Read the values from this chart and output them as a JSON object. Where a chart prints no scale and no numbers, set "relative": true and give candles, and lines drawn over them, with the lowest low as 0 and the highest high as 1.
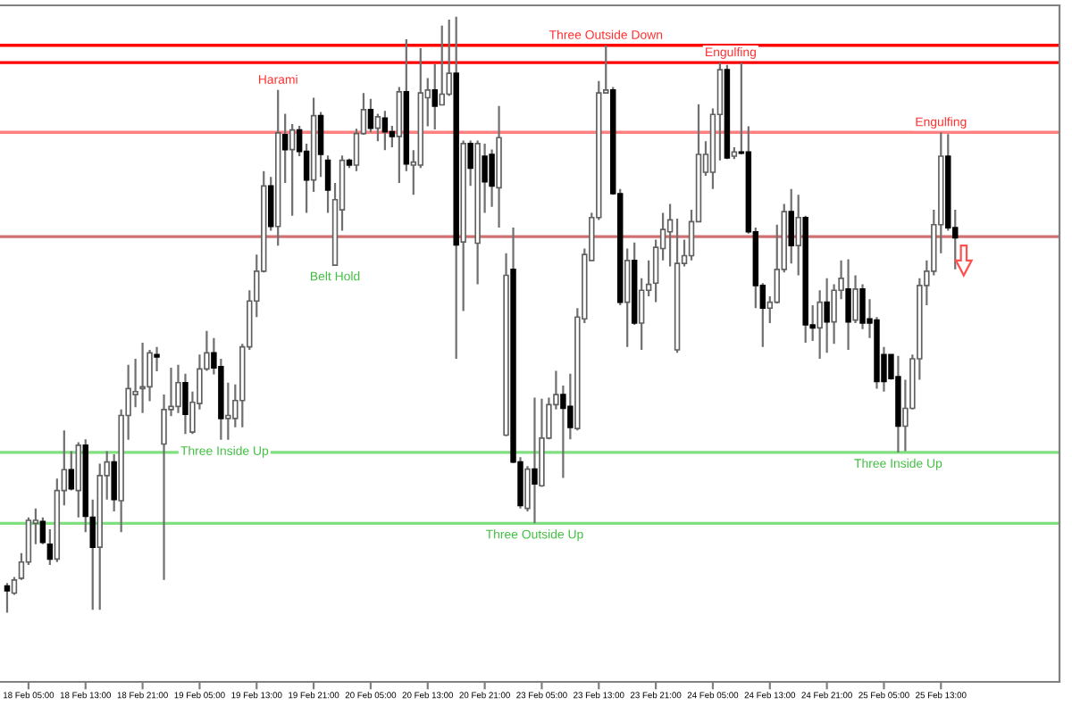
{
  "chart_data": {
    "type": "candlestick",
    "relative": true,
    "tick_labels": "x",
    "categories": [
      null,
      null,
      null,
      "18 Feb 05:00",
      null,
      null,
      null,
      null,
      null,
      null,
      null,
      "18 Feb 13:00",
      null,
      null,
      null,
      null,
      null,
      null,
      null,
      "18 Feb 21:00",
      null,
      null,
      null,
      null,
      null,
      null,
      null,
      "19 Feb 05:00",
      null,
      null,
      null,
      null,
      null,
      null,
      null,
      "19 Feb 13:00",
      null,
      null,
      null,
      null,
      null,
      null,
      null,
      "19 Feb 21:00",
      null,
      null,
      null,
      null,
      null,
      null,
      null,
      "20 Feb 05:00",
      null,
      null,
      null,
      null,
      null,
      null,
      null,
      "20 Feb 13:00",
      null,
      null,
      null,
      null,
      null,
      null,
      null,
      "20 Feb 21:00",
      null,
      null,
      null,
      null,
      null,
      null,
      null,
      "23 Feb 05:00",
      null,
      null,
      null,
      null,
      null,
      null,
      null,
      "23 Feb 13:00",
      null,
      null,
      null,
      null,
      null,
      null,
      null,
      "23 Feb 21:00",
      null,
      null,
      null,
      null,
      null,
      null,
      null,
      "24 Feb 05:00",
      null,
      null,
      null,
      null,
      null,
      null,
      null,
      "24 Feb 13:00",
      null,
      null,
      null,
      null,
      null,
      null,
      null,
      "24 Feb 21:00",
      null,
      null,
      null,
      null,
      null,
      null,
      null,
      "25 Feb 05:00",
      null,
      null,
      null,
      null,
      null,
      null,
      null,
      "25 Feb 13:00",
      null,
      null
    ],
    "ohlc": [
      [
        0.045,
        0.05,
        0,
        0.037
      ],
      [
        0.033,
        0.06,
        0.03,
        0.055
      ],
      [
        0.058,
        0.1,
        0.055,
        0.085
      ],
      [
        0.085,
        0.16,
        0.08,
        0.155
      ],
      [
        0.15,
        0.175,
        0.115,
        0.155
      ],
      [
        0.153,
        0.16,
        0.115,
        0.118
      ],
      [
        0.115,
        0.14,
        0.08,
        0.09
      ],
      [
        0.09,
        0.225,
        0.085,
        0.205
      ],
      [
        0.205,
        0.306,
        0.18,
        0.24
      ],
      [
        0.24,
        0.271,
        0.205,
        0.208
      ],
      [
        0.205,
        0.286,
        0.16,
        0.281
      ],
      [
        0.281,
        0.291,
        0.135,
        0.162
      ],
      [
        0.16,
        0.19,
        0.005,
        0.11
      ],
      [
        0.11,
        0.25,
        0.005,
        0.23
      ],
      [
        0.23,
        0.271,
        0.19,
        0.253
      ],
      [
        0.253,
        0.266,
        0.17,
        0.19
      ],
      [
        0.188,
        0.341,
        0.135,
        0.331
      ],
      [
        0.331,
        0.416,
        0.29,
        0.376
      ],
      [
        0.366,
        0.426,
        0.345,
        0.371
      ],
      [
        0.376,
        0.453,
        0.335,
        0.379
      ],
      [
        0.379,
        0.441,
        0.355,
        0.436
      ],
      [
        0.433,
        0.446,
        0.405,
        0.429
      ],
      [
        0.283,
        0.366,
        0.055,
        0.341
      ],
      [
        0.341,
        0.411,
        0.33,
        0.346
      ],
      [
        0.346,
        0.416,
        0.335,
        0.386
      ],
      [
        0.386,
        0.401,
        0.3,
        0.333
      ],
      [
        0.303,
        0.371,
        0.3,
        0.353
      ],
      [
        0.351,
        0.433,
        0.341,
        0.409
      ],
      [
        0.409,
        0.473,
        0.406,
        0.436
      ],
      [
        0.436,
        0.461,
        0.4,
        0.411
      ],
      [
        0.413,
        0.426,
        0.29,
        0.326
      ],
      [
        0.326,
        0.386,
        0.29,
        0.331
      ],
      [
        0.326,
        0.383,
        0.311,
        0.356
      ],
      [
        0.356,
        0.451,
        0.311,
        0.446
      ],
      [
        0.446,
        0.541,
        0.441,
        0.523
      ],
      [
        0.523,
        0.601,
        0.496,
        0.573
      ],
      [
        0.573,
        0.741,
        0.571,
        0.716
      ],
      [
        0.716,
        0.731,
        0.641,
        0.648
      ],
      [
        0.648,
        0.877,
        0.616,
        0.805
      ],
      [
        0.802,
        0.837,
        0.721,
        0.777
      ],
      [
        0.777,
        0.82,
        0.666,
        0.81
      ],
      [
        0.81,
        0.817,
        0.766,
        0.774
      ],
      [
        0.774,
        0.787,
        0.671,
        0.726
      ],
      [
        0.726,
        0.864,
        0.706,
        0.834
      ],
      [
        0.834,
        0.84,
        0.731,
        0.769
      ],
      [
        0.759,
        0.767,
        0.671,
        0.709
      ],
      [
        0.583,
        0.721,
        0.583,
        0.693
      ],
      [
        0.676,
        0.767,
        0.641,
        0.759
      ],
      [
        0.759,
        0.762,
        0.746,
        0.751
      ],
      [
        0.751,
        0.812,
        0.741,
        0.804
      ],
      [
        0.804,
        0.872,
        0.802,
        0.844
      ],
      [
        0.844,
        0.862,
        0.806,
        0.813
      ],
      [
        0.813,
        0.837,
        0.791,
        0.832
      ],
      [
        0.83,
        0.842,
        0.776,
        0.807
      ],
      [
        0.807,
        0.817,
        0.781,
        0.799
      ],
      [
        0.799,
        0.882,
        0.721,
        0.874
      ],
      [
        0.874,
        0.962,
        0.741,
        0.753
      ],
      [
        0.751,
        0.776,
        0.701,
        0.756
      ],
      [
        0.751,
        0.947,
        0.746,
        0.872
      ],
      [
        0.864,
        0.897,
        0.816,
        0.877
      ],
      [
        0.877,
        0.92,
        0.811,
        0.85
      ],
      [
        0.852,
        0.985,
        0.852,
        0.87
      ],
      [
        0.87,
        0.995,
        0.867,
        0.905
      ],
      [
        0.905,
        1,
        0.426,
        0.617
      ],
      [
        0.622,
        0.792,
        0.506,
        0.787
      ],
      [
        0.787,
        0.792,
        0.716,
        0.746
      ],
      [
        0.62,
        0.792,
        0.551,
        0.787
      ],
      [
        0.766,
        0.787,
        0.671,
        0.723
      ],
      [
        0.769,
        0.777,
        0.681,
        0.716
      ],
      [
        0.713,
        0.85,
        0.646,
        0.797
      ],
      [
        0.298,
        0.603,
        0.296,
        0.566
      ],
      [
        0.576,
        0.646,
        0.251,
        0.253
      ],
      [
        0.253,
        0.261,
        0.175,
        0.18
      ],
      [
        0.175,
        0.246,
        0.17,
        0.241
      ],
      [
        0.241,
        0.361,
        0.15,
        0.216
      ],
      [
        0.213,
        0.359,
        0.211,
        0.293
      ],
      [
        0.293,
        0.361,
        0.291,
        0.349
      ],
      [
        0.349,
        0.406,
        0.341,
        0.366
      ],
      [
        0.366,
        0.381,
        0.226,
        0.343
      ],
      [
        0.346,
        0.401,
        0.291,
        0.311
      ],
      [
        0.309,
        0.511,
        0.306,
        0.496
      ],
      [
        0.493,
        0.611,
        0.486,
        0.601
      ],
      [
        0.591,
        0.671,
        0.591,
        0.663
      ],
      [
        0.663,
        0.892,
        0.659,
        0.872
      ],
      [
        0.872,
        0.952,
        0.872,
        0.877
      ],
      [
        0.877,
        0.882,
        0.701,
        0.703
      ],
      [
        0.703,
        0.711,
        0.516,
        0.521
      ],
      [
        0.521,
        0.611,
        0.446,
        0.591
      ],
      [
        0.591,
        0.621,
        0.483,
        0.486
      ],
      [
        0.486,
        0.561,
        0.441,
        0.541
      ],
      [
        0.541,
        0.591,
        0.531,
        0.551
      ],
      [
        0.553,
        0.626,
        0.521,
        0.613
      ],
      [
        0.611,
        0.671,
        0.591,
        0.643
      ],
      [
        0.639,
        0.686,
        0.581,
        0.659
      ],
      [
        0.441,
        0.661,
        0.436,
        0.586
      ],
      [
        0.586,
        0.626,
        0.581,
        0.599
      ],
      [
        0.599,
        0.676,
        0.591,
        0.656
      ],
      [
        0.656,
        0.853,
        0.656,
        0.769
      ],
      [
        0.739,
        0.791,
        0.733,
        0.769
      ],
      [
        0.739,
        0.846,
        0.711,
        0.836
      ],
      [
        0.836,
        0.923,
        0.759,
        0.911
      ],
      [
        0.911,
        0.919,
        0.761,
        0.763
      ],
      [
        0.766,
        0.781,
        0.761,
        0.773
      ],
      [
        0.773,
        0.923,
        0.769,
        0.771
      ],
      [
        0.773,
        0.816,
        0.636,
        0.639
      ],
      [
        0.639,
        0.646,
        0.511,
        0.549
      ],
      [
        0.549,
        0.553,
        0.446,
        0.511
      ],
      [
        0.511,
        0.531,
        0.486,
        0.521
      ],
      [
        0.521,
        0.651,
        0.519,
        0.576
      ],
      [
        0.576,
        0.686,
        0.571,
        0.673
      ],
      [
        0.673,
        0.711,
        0.586,
        0.616
      ],
      [
        0.616,
        0.701,
        0.566,
        0.663
      ],
      [
        0.663,
        0.666,
        0.453,
        0.483
      ],
      [
        0.483,
        0.516,
        0.456,
        0.478
      ],
      [
        0.478,
        0.541,
        0.426,
        0.521
      ],
      [
        0.521,
        0.561,
        0.436,
        0.488
      ],
      [
        0.488,
        0.551,
        0.451,
        0.541
      ],
      [
        0.541,
        0.591,
        0.526,
        0.561
      ],
      [
        0.543,
        0.593,
        0.441,
        0.488
      ],
      [
        0.491,
        0.566,
        0.486,
        0.543
      ],
      [
        0.543,
        0.551,
        0.476,
        0.486
      ],
      [
        0.493,
        0.526,
        0.461,
        0.486
      ],
      [
        0.491,
        0.496,
        0.376,
        0.388
      ],
      [
        0.433,
        0.446,
        0.371,
        0.388
      ],
      [
        0.433,
        0.433,
        0.391,
        0.393
      ],
      [
        0.396,
        0.431,
        0.269,
        0.313
      ],
      [
        0.313,
        0.391,
        0.271,
        0.343
      ],
      [
        0.343,
        0.433,
        0.341,
        0.426
      ],
      [
        0.426,
        0.561,
        0.391,
        0.549
      ],
      [
        0.549,
        0.591,
        0.516,
        0.573
      ],
      [
        0.573,
        0.676,
        0.566,
        0.651
      ],
      [
        0.651,
        0.806,
        0.603,
        0.766
      ],
      [
        0.766,
        0.803,
        0.641,
        0.646
      ],
      [
        0.646,
        0.676,
        0.576,
        0.629
      ]
    ],
    "ref_lines": [
      {
        "axis": "y",
        "value": 0.952,
        "color": "#ff0000"
      },
      {
        "axis": "y",
        "value": 0.923,
        "color": "#ff0000"
      },
      {
        "axis": "y",
        "value": 0.806,
        "color": "#ff8080"
      },
      {
        "axis": "y",
        "value": 0.631,
        "color": "#d07070"
      },
      {
        "axis": "y",
        "value": 0.269,
        "color": "#80e080"
      },
      {
        "axis": "y",
        "value": 0.15,
        "color": "#80e080"
      }
    ],
    "annotations": [
      {
        "text": "Three Inside Up",
        "y": 0.29
      },
      {
        "text": "Harami",
        "y": 0.877
      },
      {
        "text": "Belt Hold",
        "y": 0.583
      },
      {
        "text": "Three Outside Up",
        "y": 0.15
      },
      {
        "text": "Three Outside Down",
        "y": 0.952
      },
      {
        "text": "Engulfing",
        "y": 0.923
      },
      {
        "text": "Three Inside Up",
        "y": 0.269
      },
      {
        "text": "Engulfing",
        "y": 0.806
      }
    ]
  }
}
